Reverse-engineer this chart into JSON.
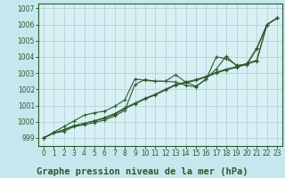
{
  "title": "",
  "xlabel": "Graphe pression niveau de la mer (hPa)",
  "ylabel": "",
  "background_color": "#c5e8ee",
  "plot_bg_color": "#d8f0f4",
  "grid_color": "#a8cdd4",
  "line_color": "#2d5a2d",
  "border_color": "#2d5a2d",
  "xlim": [
    -0.5,
    23.5
  ],
  "ylim": [
    998.5,
    1007.3
  ],
  "yticks": [
    999,
    1000,
    1001,
    1002,
    1003,
    1004,
    1005,
    1006,
    1007
  ],
  "xticks": [
    0,
    1,
    2,
    3,
    4,
    5,
    6,
    7,
    8,
    9,
    10,
    11,
    12,
    13,
    14,
    15,
    16,
    17,
    18,
    19,
    20,
    21,
    22,
    23
  ],
  "series": [
    [
      999.0,
      999.3,
      999.4,
      999.7,
      999.8,
      999.95,
      1000.1,
      1000.35,
      1000.7,
      1002.3,
      1002.6,
      1002.5,
      1002.5,
      1002.9,
      1002.45,
      1002.2,
      1002.6,
      1004.0,
      1003.9,
      1003.5,
      1003.5,
      1004.5,
      1006.0,
      1006.4
    ],
    [
      999.0,
      999.3,
      999.5,
      999.75,
      999.9,
      1000.05,
      1000.2,
      1000.45,
      1000.8,
      1001.1,
      1001.4,
      1001.65,
      1001.95,
      1002.25,
      1002.4,
      1002.55,
      1002.75,
      1003.0,
      1003.2,
      1003.35,
      1003.55,
      1003.75,
      1006.0,
      1006.4
    ],
    [
      999.0,
      999.3,
      999.5,
      999.75,
      999.9,
      1000.05,
      1000.25,
      1000.5,
      1000.85,
      1001.15,
      1001.45,
      1001.7,
      1002.0,
      1002.3,
      1002.45,
      1002.6,
      1002.8,
      1003.05,
      1003.25,
      1003.4,
      1003.6,
      1003.8,
      1006.0,
      1006.4
    ],
    [
      999.0,
      999.35,
      999.7,
      1000.05,
      1000.4,
      1000.55,
      1000.65,
      1000.95,
      1001.35,
      1002.65,
      1002.55,
      1002.5,
      1002.5,
      1002.45,
      1002.25,
      1002.15,
      1002.65,
      1003.25,
      1004.05,
      1003.45,
      1003.55,
      1004.55,
      1006.0,
      1006.4
    ]
  ],
  "xlabel_fontsize": 7.5,
  "xlabel_color": "#2d5a2d",
  "tick_fontsize": 5.5
}
